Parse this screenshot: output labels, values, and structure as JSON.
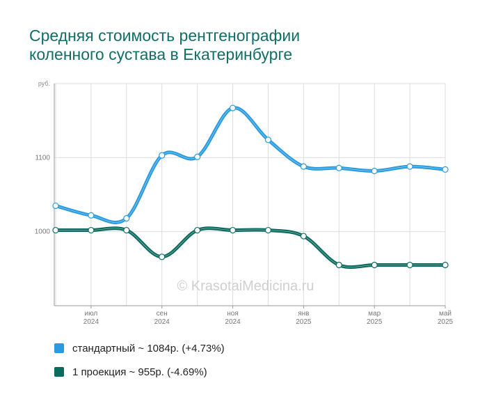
{
  "title_line1": "Средняя стоимость рентгенографии",
  "title_line2": "коленного сустава в Екатеринбурге",
  "watermark": "© KrasotaiMedicina.ru",
  "colors": {
    "title": "#0f6f65",
    "standard": "#2b9be0",
    "projection": "#0b6b5f",
    "grid": "#dddddd",
    "axis": "#999999"
  },
  "chart_data": {
    "type": "line",
    "y_unit": "руб.",
    "ylim": [
      900,
      1200
    ],
    "yticks": [
      1000,
      1100
    ],
    "x_labels": [
      {
        "i": 1,
        "month": "июл",
        "year": "2024"
      },
      {
        "i": 3,
        "month": "сен",
        "year": "2024"
      },
      {
        "i": 5,
        "month": "ноя",
        "year": "2024"
      },
      {
        "i": 7,
        "month": "янв",
        "year": "2025"
      },
      {
        "i": 9,
        "month": "мар",
        "year": "2025"
      },
      {
        "i": 11,
        "month": "май",
        "year": "2025"
      }
    ],
    "series": [
      {
        "name": "стандартный",
        "color": "#2b9be0",
        "values": [
          1035,
          1022,
          1018,
          1103,
          1101,
          1167,
          1124,
          1088,
          1086,
          1082,
          1088,
          1084
        ]
      },
      {
        "name": "1 проекция",
        "color": "#0b6b5f",
        "values": [
          1002,
          1002,
          1002,
          966,
          1002,
          1002,
          1002,
          994,
          955,
          955,
          955,
          955
        ]
      }
    ],
    "legend": [
      {
        "label": "стандартный ~ 1084р. (+4.73%)",
        "color": "#2b9be0"
      },
      {
        "label": "1 проекция ~ 955р. (-4.69%)",
        "color": "#0b6b5f"
      }
    ],
    "grid": true,
    "legend_position": "bottom"
  }
}
